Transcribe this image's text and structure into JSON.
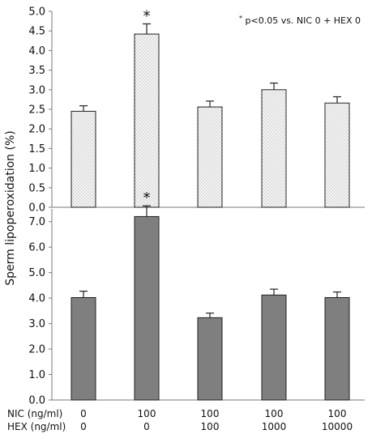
{
  "chart_data": [
    {
      "type": "bar",
      "panel": "top",
      "categories": [
        "NIC 0 + HEX 0",
        "NIC 100 + HEX 0",
        "NIC 100 + HEX 100",
        "NIC 100 + HEX 1000",
        "NIC 100 + HEX 10000"
      ],
      "values": [
        2.45,
        4.42,
        2.56,
        3.0,
        2.66
      ],
      "errors": [
        0.14,
        0.26,
        0.15,
        0.17,
        0.16
      ],
      "significant": [
        false,
        true,
        false,
        false,
        false
      ],
      "ylim": [
        0,
        5.0
      ],
      "yticks": [
        "0.0",
        "0.5",
        "1.0",
        "1.5",
        "2.0",
        "2.5",
        "3.0",
        "3.5",
        "4.0",
        "4.5",
        "5.0"
      ],
      "bar_fill": "dotted",
      "bar_color": "#f2f2f2",
      "annotation": "*p<0.05 vs. NIC 0 + HEX 0"
    },
    {
      "type": "bar",
      "panel": "bottom",
      "categories": [
        "NIC 0 + HEX 0",
        "NIC 100 + HEX 0",
        "NIC 100 + HEX 100",
        "NIC 100 + HEX 1000",
        "NIC 100 + HEX 10000"
      ],
      "values": [
        4.02,
        7.2,
        3.23,
        4.12,
        4.02
      ],
      "errors": [
        0.25,
        0.42,
        0.18,
        0.23,
        0.22
      ],
      "significant": [
        false,
        true,
        false,
        false,
        false
      ],
      "ylim": [
        0,
        7.5
      ],
      "yticks": [
        "0.0",
        "1.0",
        "2.0",
        "3.0",
        "4.0",
        "5.0",
        "6.0",
        "7.0"
      ],
      "bar_color": "#7f7f7f"
    }
  ],
  "ylabel": "Sperm lipoperoxidation (%)",
  "significance_marker": "*",
  "annotation": {
    "superscript": "*",
    "text": "p<0.05 vs. NIC 0 + HEX 0"
  },
  "x_rows": [
    {
      "label": "NIC (ng/ml)",
      "values": [
        "0",
        "100",
        "100",
        "100",
        "100"
      ]
    },
    {
      "label": "HEX (ng/ml)",
      "values": [
        "0",
        "0",
        "100",
        "1000",
        "10000"
      ]
    }
  ]
}
